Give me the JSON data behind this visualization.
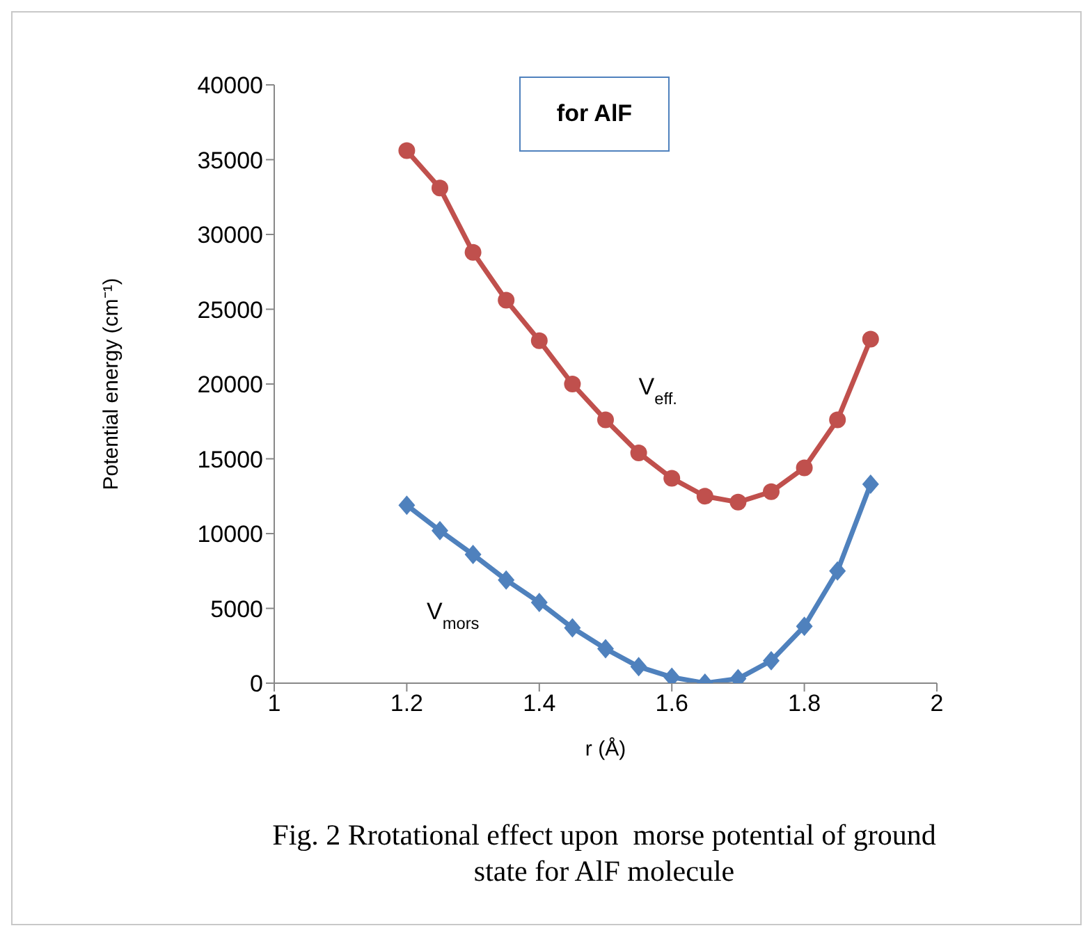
{
  "chart_data": {
    "type": "line",
    "title": "for AlF",
    "xlabel": "r (Å)",
    "ylabel": "Potential energy (cm⁻¹)",
    "annotations": [
      "Fig. 2 Rrotational effect upon  morse potential of ground state for AlF molecule"
    ],
    "x": [
      1.2,
      1.25,
      1.3,
      1.35,
      1.4,
      1.45,
      1.5,
      1.55,
      1.6,
      1.65,
      1.7,
      1.75,
      1.8,
      1.85,
      1.9
    ],
    "series": [
      {
        "name": "V$_{eff.}$",
        "color": "#c0504d",
        "marker": "circle",
        "values": [
          35600,
          33100,
          28800,
          25600,
          22900,
          20000,
          17600,
          15400,
          13700,
          12500,
          12100,
          12800,
          14400,
          17600,
          23000
        ]
      },
      {
        "name": "V$_{mors}$",
        "color": "#4f81bd",
        "marker": "diamond",
        "values": [
          11900,
          10200,
          8600,
          6900,
          5400,
          3700,
          2300,
          1100,
          400,
          0,
          300,
          1500,
          3800,
          7500,
          13300
        ]
      }
    ],
    "xlim": [
      1,
      2
    ],
    "xticks": [
      1,
      1.2,
      1.4,
      1.6,
      1.8,
      2
    ],
    "ylim": [
      0,
      40000
    ],
    "yticks": [
      0,
      5000,
      10000,
      15000,
      20000,
      25000,
      30000,
      35000,
      40000
    ],
    "grid": false,
    "legend": false,
    "line_style": "solid"
  }
}
